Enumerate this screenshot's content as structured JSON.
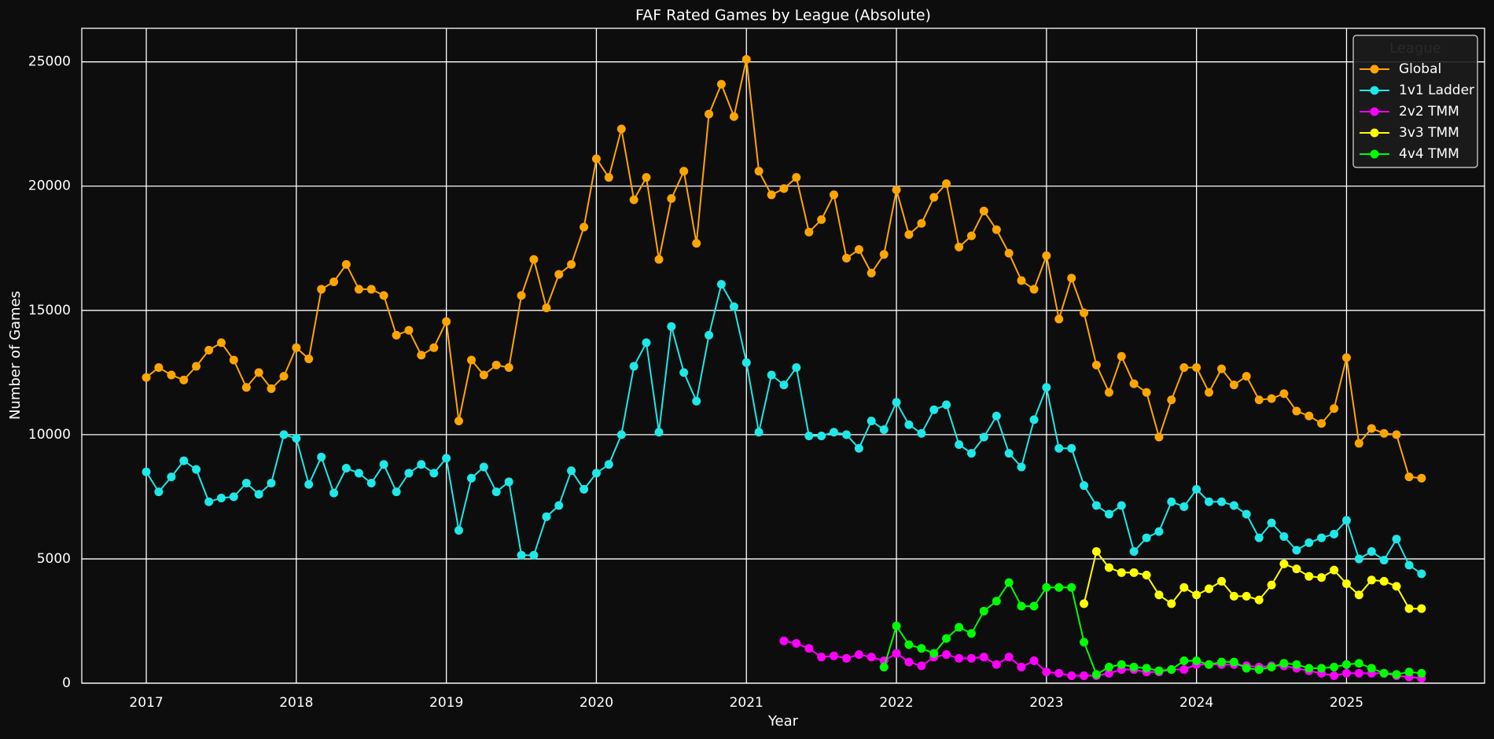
{
  "chart_data": {
    "type": "line",
    "title": "FAF Rated Games by League (Absolute)",
    "x_label": "Year",
    "y_label": "Number of Games",
    "legend_title": "League",
    "legend": "upper right",
    "grid": true,
    "xlim": [
      2016.57,
      2025.92
    ],
    "xticks": [
      2017,
      2018,
      2019,
      2020,
      2021,
      2022,
      2023,
      2024,
      2025
    ],
    "ylim": [
      0,
      26350
    ],
    "yticks": [
      0,
      5000,
      10000,
      15000,
      20000,
      25000
    ],
    "x": [
      2017,
      2017.083,
      2017.167,
      2017.25,
      2017.333,
      2017.417,
      2017.5,
      2017.583,
      2017.667,
      2017.75,
      2017.833,
      2017.917,
      2018,
      2018.083,
      2018.167,
      2018.25,
      2018.333,
      2018.417,
      2018.5,
      2018.583,
      2018.667,
      2018.75,
      2018.833,
      2018.917,
      2019,
      2019.083,
      2019.167,
      2019.25,
      2019.333,
      2019.417,
      2019.5,
      2019.583,
      2019.667,
      2019.75,
      2019.833,
      2019.917,
      2020,
      2020.083,
      2020.167,
      2020.25,
      2020.333,
      2020.417,
      2020.5,
      2020.583,
      2020.667,
      2020.75,
      2020.833,
      2020.917,
      2021,
      2021.083,
      2021.167,
      2021.25,
      2021.333,
      2021.417,
      2021.5,
      2021.583,
      2021.667,
      2021.75,
      2021.833,
      2021.917,
      2022,
      2022.083,
      2022.167,
      2022.25,
      2022.333,
      2022.417,
      2022.5,
      2022.583,
      2022.667,
      2022.75,
      2022.833,
      2022.917,
      2023,
      2023.083,
      2023.167,
      2023.25,
      2023.333,
      2023.417,
      2023.5,
      2023.583,
      2023.667,
      2023.75,
      2023.833,
      2023.917,
      2024,
      2024.083,
      2024.167,
      2024.25,
      2024.333,
      2024.417,
      2024.5,
      2024.583,
      2024.667,
      2024.75,
      2024.833,
      2024.917,
      2025,
      2025.083,
      2025.167,
      2025.25,
      2025.333,
      2025.417,
      2025.5
    ],
    "series": [
      {
        "name": "Global",
        "color": "#ffa500",
        "values": [
          12300,
          12700,
          12400,
          12200,
          12750,
          13400,
          13700,
          13000,
          11900,
          12500,
          11850,
          12350,
          13500,
          13050,
          15850,
          16150,
          16850,
          15850,
          15850,
          15600,
          14000,
          14200,
          13200,
          13500,
          14550,
          10550,
          13000,
          12400,
          12800,
          12700,
          15600,
          17050,
          15100,
          16450,
          16850,
          18350,
          21100,
          20350,
          22300,
          19450,
          20350,
          17050,
          19500,
          20600,
          17700,
          22900,
          24100,
          22800,
          25100,
          20600,
          19650,
          19900,
          20350,
          18150,
          18650,
          19650,
          17100,
          17450,
          16500,
          17250,
          19850,
          18050,
          18500,
          19550,
          20100,
          17550,
          18000,
          19000,
          18250,
          17300,
          16200,
          15850,
          17200,
          14650,
          16300,
          14900,
          12800,
          11700,
          13150,
          12050,
          11700,
          9900,
          11400,
          12700,
          12700,
          11700,
          12650,
          12000,
          12350,
          11400,
          11450,
          11650,
          10950,
          10750,
          10450,
          11050,
          13100,
          9650,
          10250,
          10050,
          10000,
          8300,
          8250
        ]
      },
      {
        "name": "1v1 Ladder",
        "color": "#1ee8e8",
        "values": [
          8500,
          7700,
          8300,
          8950,
          8600,
          7300,
          7450,
          7500,
          8050,
          7600,
          8050,
          10000,
          9850,
          8000,
          9100,
          7650,
          8650,
          8450,
          8050,
          8800,
          7700,
          8450,
          8800,
          8450,
          9050,
          6150,
          8250,
          8700,
          7700,
          8100,
          5150,
          5150,
          6700,
          7150,
          8550,
          7800,
          8450,
          8800,
          10000,
          12750,
          13700,
          10100,
          14350,
          12500,
          11350,
          14000,
          16050,
          15150,
          12900,
          10100,
          12400,
          12000,
          12700,
          9950,
          9950,
          10100,
          10000,
          9450,
          10550,
          10200,
          11300,
          10400,
          10050,
          11000,
          11200,
          9600,
          9250,
          9900,
          10750,
          9250,
          8700,
          10600,
          11900,
          9450,
          9450,
          7950,
          7150,
          6800,
          7150,
          5300,
          5850,
          6100,
          7300,
          7100,
          7800,
          7300,
          7300,
          7150,
          6800,
          5850,
          6450,
          5900,
          5350,
          5650,
          5850,
          6000,
          6550,
          5000,
          5300,
          4950,
          5800,
          4750,
          4400
        ]
      },
      {
        "name": "2v2 TMM",
        "color": "#ff00ff",
        "values": [
          null,
          null,
          null,
          null,
          null,
          null,
          null,
          null,
          null,
          null,
          null,
          null,
          null,
          null,
          null,
          null,
          null,
          null,
          null,
          null,
          null,
          null,
          null,
          null,
          null,
          null,
          null,
          null,
          null,
          null,
          null,
          null,
          null,
          null,
          null,
          null,
          null,
          null,
          null,
          null,
          null,
          null,
          null,
          null,
          null,
          null,
          null,
          null,
          null,
          null,
          null,
          1700,
          1600,
          1400,
          1050,
          1100,
          1000,
          1150,
          1050,
          900,
          1200,
          850,
          700,
          1050,
          1150,
          1000,
          1000,
          1050,
          750,
          1050,
          650,
          900,
          450,
          400,
          300,
          300,
          300,
          400,
          550,
          550,
          450,
          450,
          550,
          550,
          750,
          750,
          750,
          750,
          700,
          650,
          700,
          700,
          600,
          500,
          400,
          300,
          400,
          400,
          400,
          400,
          300,
          250,
          200
        ]
      },
      {
        "name": "3v3 TMM",
        "color": "#ffff00",
        "values": [
          null,
          null,
          null,
          null,
          null,
          null,
          null,
          null,
          null,
          null,
          null,
          null,
          null,
          null,
          null,
          null,
          null,
          null,
          null,
          null,
          null,
          null,
          null,
          null,
          null,
          null,
          null,
          null,
          null,
          null,
          null,
          null,
          null,
          null,
          null,
          null,
          null,
          null,
          null,
          null,
          null,
          null,
          null,
          null,
          null,
          null,
          null,
          null,
          null,
          null,
          null,
          null,
          null,
          null,
          null,
          null,
          null,
          null,
          null,
          null,
          null,
          null,
          null,
          null,
          null,
          null,
          null,
          null,
          null,
          null,
          null,
          null,
          null,
          null,
          null,
          3200,
          5300,
          4650,
          4450,
          4450,
          4350,
          3550,
          3200,
          3850,
          3550,
          3800,
          4100,
          3500,
          3500,
          3350,
          3950,
          4800,
          4600,
          4300,
          4250,
          4550,
          4000,
          3550,
          4150,
          4100,
          3900,
          3000,
          3000
        ]
      },
      {
        "name": "4v4 TMM",
        "color": "#00ff00",
        "values": [
          null,
          null,
          null,
          null,
          null,
          null,
          null,
          null,
          null,
          null,
          null,
          null,
          null,
          null,
          null,
          null,
          null,
          null,
          null,
          null,
          null,
          null,
          null,
          null,
          null,
          null,
          null,
          null,
          null,
          null,
          null,
          null,
          null,
          null,
          null,
          null,
          null,
          null,
          null,
          null,
          null,
          null,
          null,
          null,
          null,
          null,
          null,
          null,
          null,
          null,
          null,
          null,
          null,
          null,
          null,
          null,
          null,
          null,
          null,
          650,
          2300,
          1550,
          1400,
          1200,
          1800,
          2250,
          2000,
          2900,
          3300,
          4050,
          3100,
          3100,
          3850,
          3850,
          3850,
          1650,
          350,
          650,
          750,
          650,
          600,
          500,
          550,
          900,
          900,
          750,
          850,
          850,
          600,
          550,
          650,
          800,
          750,
          600,
          600,
          650,
          750,
          800,
          600,
          400,
          350,
          450,
          400
        ]
      }
    ]
  }
}
